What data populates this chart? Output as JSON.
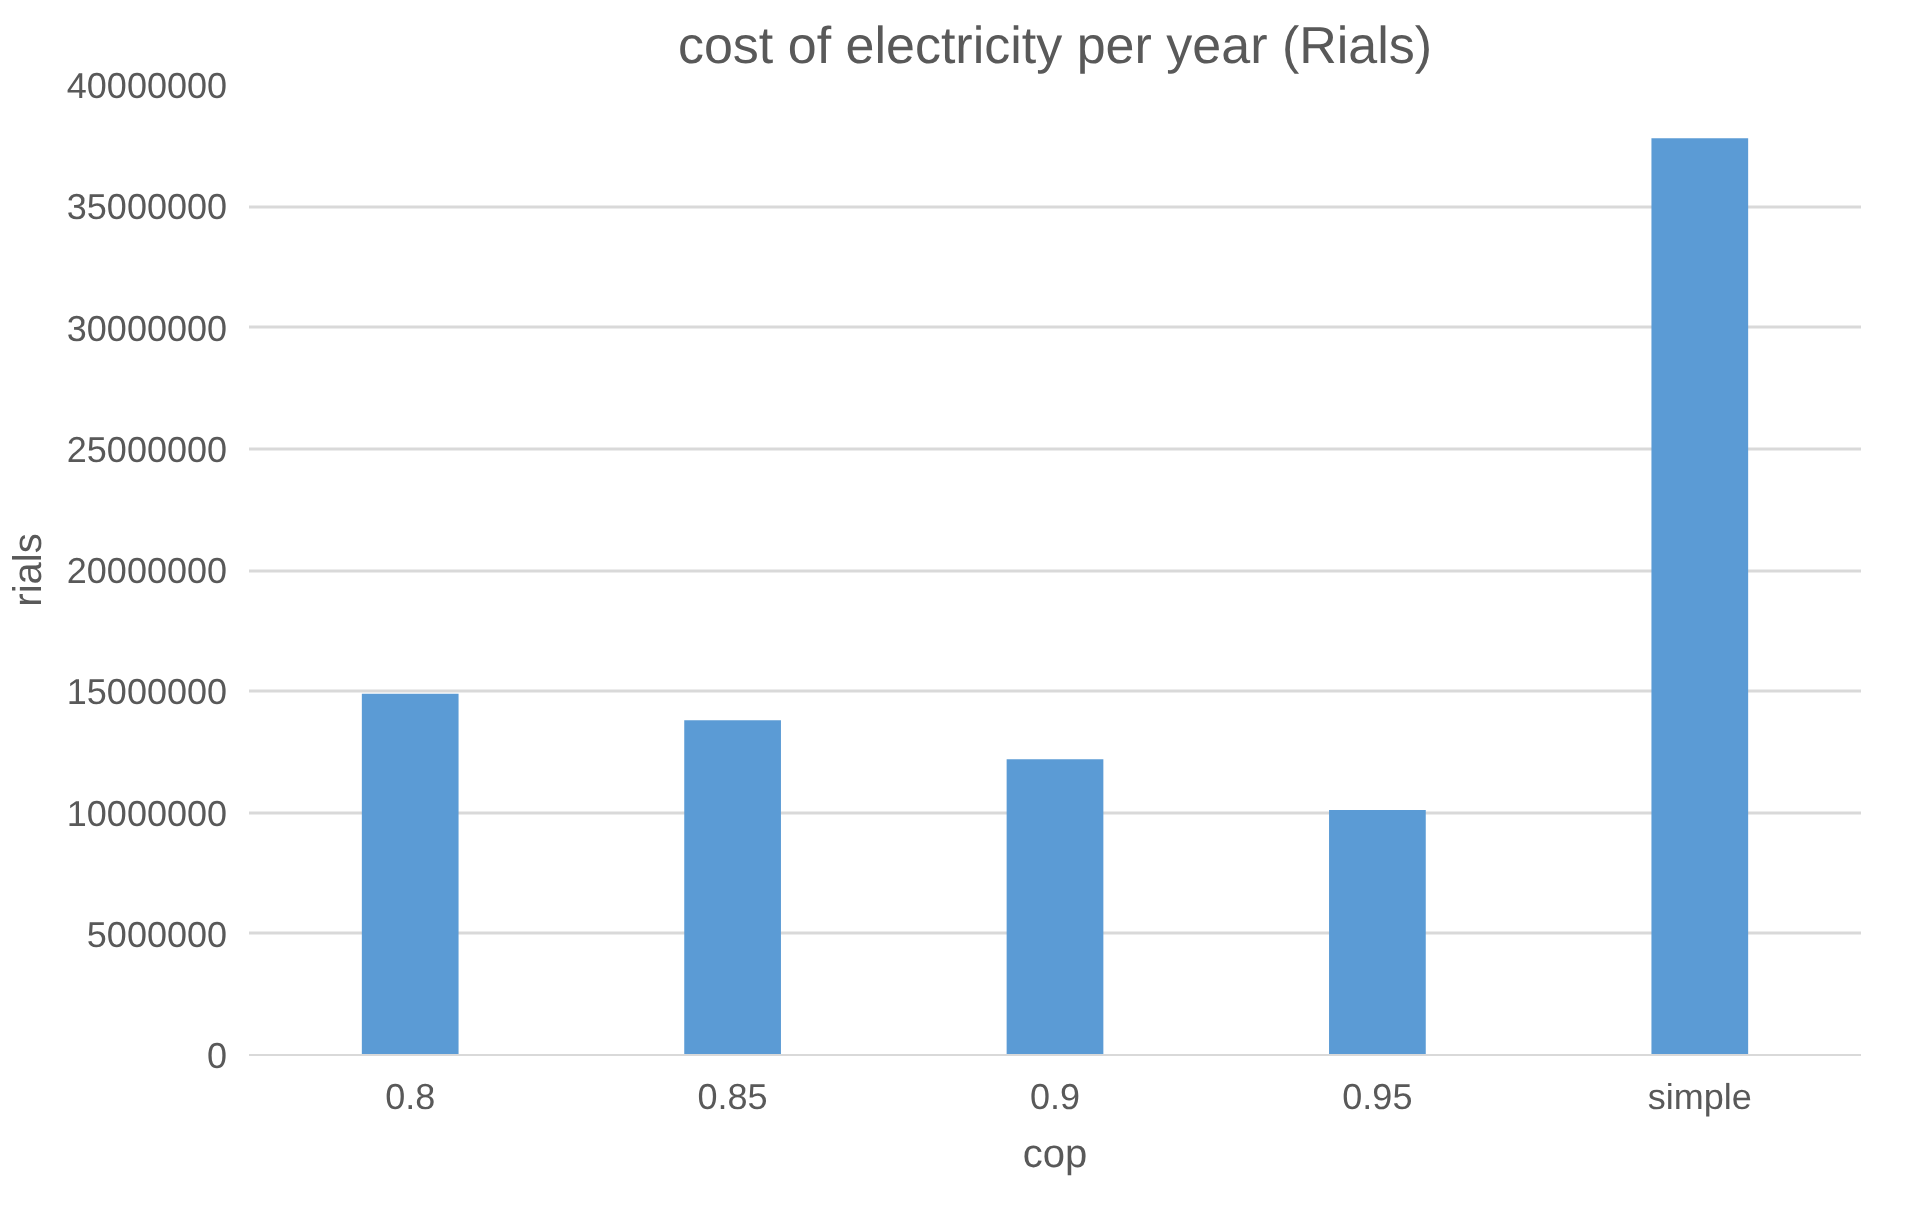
{
  "chart_data": {
    "type": "bar",
    "title": "cost of electricity per year (Rials)",
    "xlabel": "cop",
    "ylabel": "rials",
    "categories": [
      "0.8",
      "0.85",
      "0.9",
      "0.95",
      "simple"
    ],
    "values": [
      14900000,
      13800000,
      12200000,
      10100000,
      37800000
    ],
    "color": "#5b9bd5",
    "ylim": [
      0,
      40000000
    ],
    "yticks": [
      0,
      5000000,
      10000000,
      15000000,
      20000000,
      25000000,
      30000000,
      35000000,
      40000000
    ],
    "grid": "y"
  }
}
